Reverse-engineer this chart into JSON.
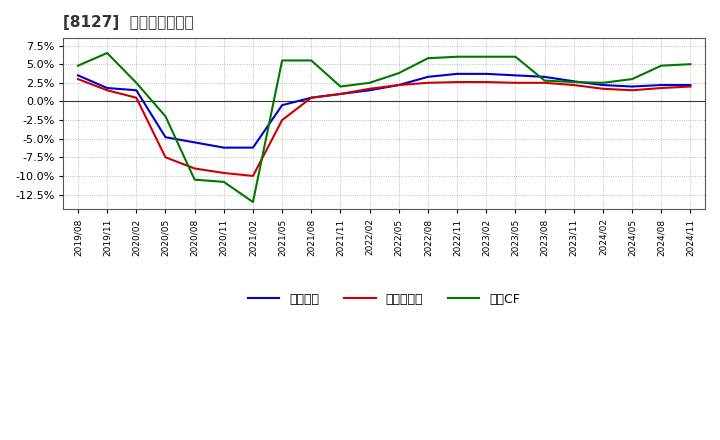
{
  "title": "[8127]  マージンの推移",
  "title_fontsize": 11,
  "ylim": [
    -0.145,
    0.085
  ],
  "yticks": [
    -0.125,
    -0.1,
    -0.075,
    -0.05,
    -0.025,
    0.0,
    0.025,
    0.05,
    0.075
  ],
  "ytick_labels": [
    "-12.5%",
    "-10.0%",
    "-7.5%",
    "-5.0%",
    "-2.5%",
    "0.0%",
    "2.5%",
    "5.0%",
    "7.5%"
  ],
  "background_color": "#ffffff",
  "plot_bg_color": "#ffffff",
  "grid_color": "#aaaaaa",
  "legend_labels": [
    "経常利益",
    "当期純利益",
    "営業CF"
  ],
  "line_width": 1.5,
  "series": {
    "経常利益": {
      "color": "#0000cc",
      "data": [
        [
          "2019/08",
          0.035
        ],
        [
          "2019/11",
          0.018
        ],
        [
          "2020/02",
          0.015
        ],
        [
          "2020/05",
          -0.048
        ],
        [
          "2020/08",
          -0.055
        ],
        [
          "2020/11",
          -0.062
        ],
        [
          "2021/02",
          -0.062
        ],
        [
          "2021/05",
          -0.005
        ],
        [
          "2021/08",
          0.005
        ],
        [
          "2021/11",
          0.01
        ],
        [
          "2022/02",
          0.015
        ],
        [
          "2022/05",
          0.022
        ],
        [
          "2022/08",
          0.033
        ],
        [
          "2022/11",
          0.037
        ],
        [
          "2023/02",
          0.037
        ],
        [
          "2023/05",
          0.035
        ],
        [
          "2023/08",
          0.033
        ],
        [
          "2023/11",
          0.027
        ],
        [
          "2024/02",
          0.022
        ],
        [
          "2024/05",
          0.02
        ],
        [
          "2024/08",
          0.022
        ],
        [
          "2024/11",
          0.022
        ]
      ]
    },
    "当期純利益": {
      "color": "#cc0000",
      "data": [
        [
          "2019/08",
          0.03
        ],
        [
          "2019/11",
          0.015
        ],
        [
          "2020/02",
          0.005
        ],
        [
          "2020/05",
          -0.075
        ],
        [
          "2020/08",
          -0.09
        ],
        [
          "2020/11",
          -0.096
        ],
        [
          "2021/02",
          -0.1
        ],
        [
          "2021/05",
          -0.025
        ],
        [
          "2021/08",
          0.005
        ],
        [
          "2021/11",
          0.01
        ],
        [
          "2022/02",
          0.017
        ],
        [
          "2022/05",
          0.022
        ],
        [
          "2022/08",
          0.025
        ],
        [
          "2022/11",
          0.026
        ],
        [
          "2023/02",
          0.026
        ],
        [
          "2023/05",
          0.025
        ],
        [
          "2023/08",
          0.025
        ],
        [
          "2023/11",
          0.022
        ],
        [
          "2024/02",
          0.017
        ],
        [
          "2024/05",
          0.015
        ],
        [
          "2024/08",
          0.018
        ],
        [
          "2024/11",
          0.02
        ]
      ]
    },
    "営業CF": {
      "color": "#007700",
      "data": [
        [
          "2019/08",
          0.048
        ],
        [
          "2019/11",
          0.065
        ],
        [
          "2020/02",
          0.025
        ],
        [
          "2020/05",
          -0.02
        ],
        [
          "2020/08",
          -0.105
        ],
        [
          "2020/11",
          -0.108
        ],
        [
          "2021/02",
          -0.135
        ],
        [
          "2021/05",
          0.055
        ],
        [
          "2021/08",
          0.055
        ],
        [
          "2021/11",
          0.02
        ],
        [
          "2022/02",
          0.025
        ],
        [
          "2022/05",
          0.038
        ],
        [
          "2022/08",
          0.058
        ],
        [
          "2022/11",
          0.06
        ],
        [
          "2023/02",
          0.06
        ],
        [
          "2023/05",
          0.06
        ],
        [
          "2023/08",
          0.028
        ],
        [
          "2023/11",
          0.026
        ],
        [
          "2024/02",
          0.025
        ],
        [
          "2024/05",
          0.03
        ],
        [
          "2024/08",
          0.048
        ],
        [
          "2024/11",
          0.05
        ]
      ]
    }
  }
}
